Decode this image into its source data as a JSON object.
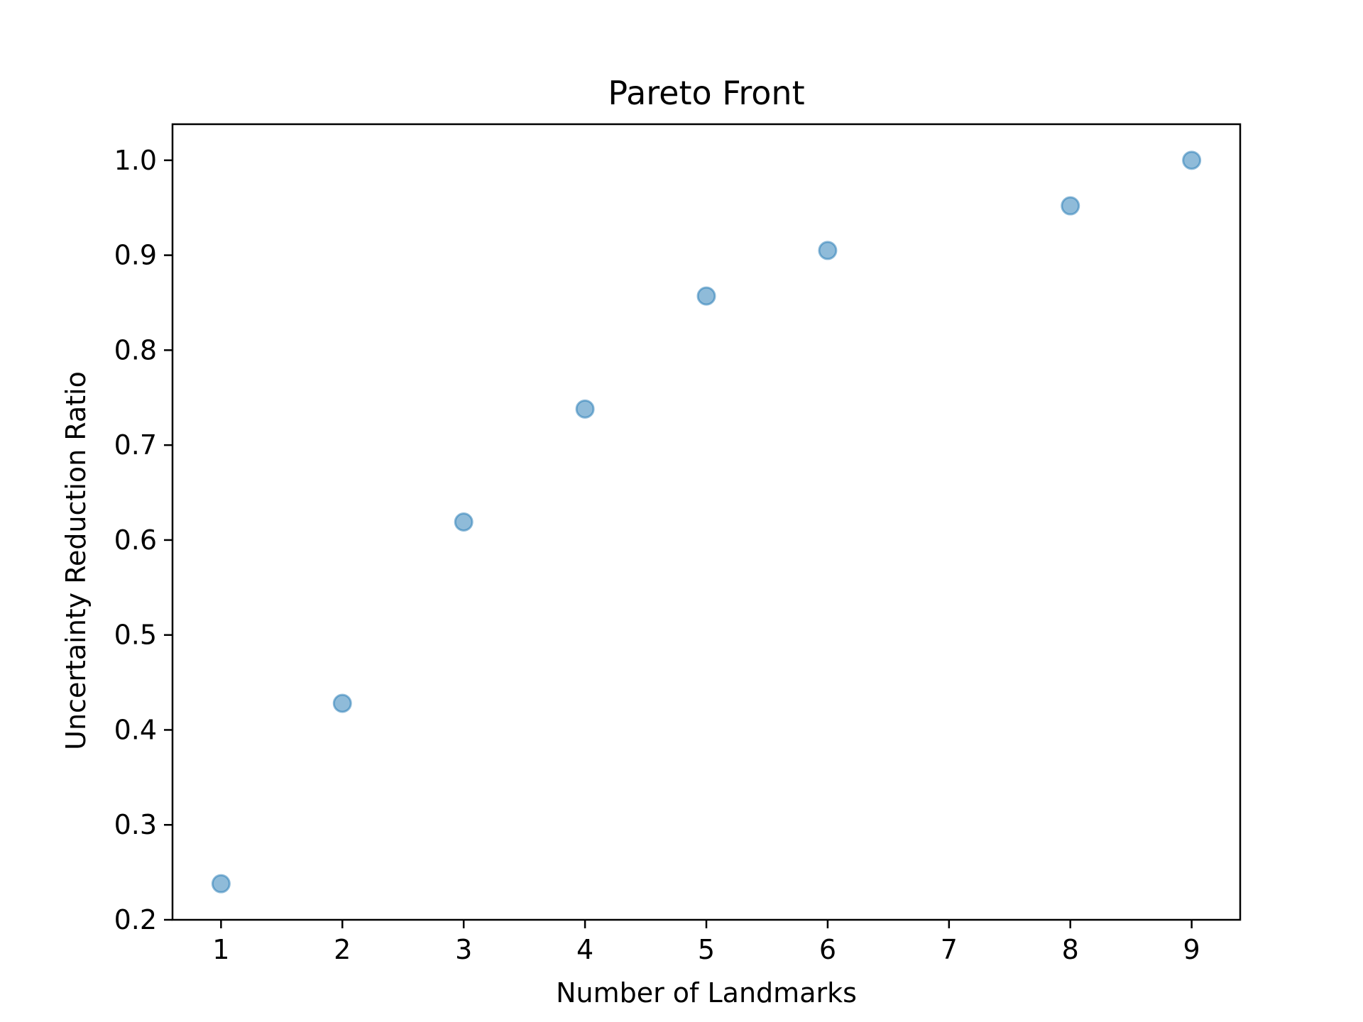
{
  "chart_data": {
    "type": "scatter",
    "title": "Pareto Front",
    "xlabel": "Number of Landmarks",
    "ylabel": "Uncertainty Reduction Ratio",
    "x": [
      1,
      2,
      3,
      4,
      5,
      6,
      8,
      9
    ],
    "y": [
      0.238,
      0.428,
      0.619,
      0.738,
      0.857,
      0.905,
      0.952,
      1.0
    ],
    "xlim": [
      0.6,
      9.4
    ],
    "ylim": [
      0.2,
      1.038
    ],
    "xticks": [
      1,
      2,
      3,
      4,
      5,
      6,
      7,
      8,
      9
    ],
    "xtick_labels": [
      "1",
      "2",
      "3",
      "4",
      "5",
      "6",
      "7",
      "8",
      "9"
    ],
    "yticks": [
      0.2,
      0.3,
      0.4,
      0.5,
      0.6,
      0.7,
      0.8,
      0.9,
      1.0
    ],
    "ytick_labels": [
      "0.2",
      "0.3",
      "0.4",
      "0.5",
      "0.6",
      "0.7",
      "0.8",
      "0.9",
      "1.0"
    ],
    "grid": false,
    "marker_color": "#1f77b4",
    "marker_alpha": 0.5
  }
}
